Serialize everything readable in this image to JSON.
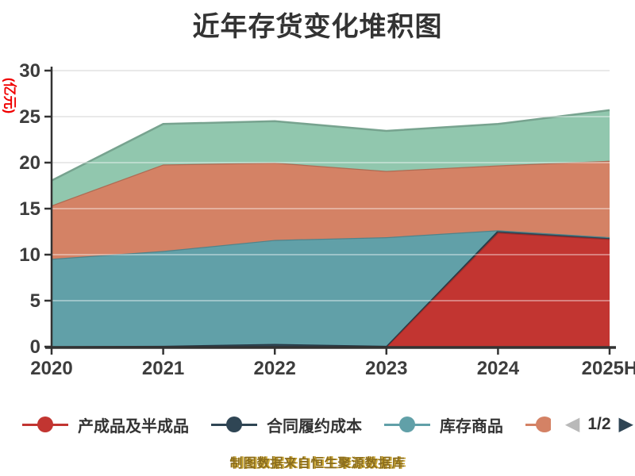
{
  "chart": {
    "title": "近年存货变化堆积图",
    "y_axis": {
      "unit": "(亿元)",
      "ticks": [
        0,
        5,
        10,
        15,
        20,
        25,
        30
      ],
      "max": 30
    },
    "x_axis": {
      "categories": [
        "2020",
        "2021",
        "2022",
        "2023",
        "2024",
        "2025H"
      ]
    }
  },
  "chart_data": {
    "type": "area",
    "stacked": true,
    "title": "近年存货变化堆积图",
    "xlabel": "",
    "ylabel": "(亿元)",
    "ylim": [
      0,
      30
    ],
    "y_ticks": [
      0,
      5,
      10,
      15,
      20,
      25,
      30
    ],
    "grid": true,
    "legend_position": "bottom",
    "categories": [
      "2020",
      "2021",
      "2022",
      "2023",
      "2024",
      "2025H"
    ],
    "series": [
      {
        "name": "产成品及半成品",
        "color": "#c23531",
        "values": [
          0,
          0,
          0,
          0,
          12.4,
          11.7
        ]
      },
      {
        "name": "合同履约成本",
        "color": "#2f4554",
        "values": [
          0.05,
          0.1,
          0.3,
          0.1,
          0.25,
          0.2
        ]
      },
      {
        "name": "库存商品",
        "color": "#61a0a8",
        "values": [
          9.5,
          10.3,
          11.3,
          11.8,
          0,
          0
        ]
      },
      {
        "name": "",
        "color": "#d48265",
        "values": [
          5.8,
          9.4,
          8.4,
          7.2,
          7.05,
          8.3
        ]
      },
      {
        "name": "",
        "color": "#91c7ae",
        "values": [
          2.7,
          4.4,
          4.5,
          4.35,
          4.5,
          5.5
        ]
      }
    ],
    "stack_totals": [
      18.05,
      24.2,
      24.5,
      23.45,
      24.2,
      25.7
    ]
  },
  "legend": {
    "items": [
      {
        "label": "产成品及半成品",
        "color": "#c23531",
        "clipped": false
      },
      {
        "label": "合同履约成本",
        "color": "#2f4554",
        "clipped": false
      },
      {
        "label": "库存商品",
        "color": "#61a0a8",
        "clipped": false
      },
      {
        "label": "",
        "color": "#d48265",
        "clipped": true
      }
    ],
    "pagination": {
      "label": "1/2",
      "prev_color": "#b9b9b9",
      "next_color": "#2f4554",
      "prev_glyph": "◀",
      "next_glyph": "▶"
    }
  },
  "footer": {
    "caption": "制图数据来自恒生聚源数据库"
  },
  "palette": {
    "axis": "#333333",
    "tick_label": "#3d3d3d",
    "grid_line": "#dcdcdc",
    "title": "#333333",
    "unit_label": "#f00000"
  }
}
